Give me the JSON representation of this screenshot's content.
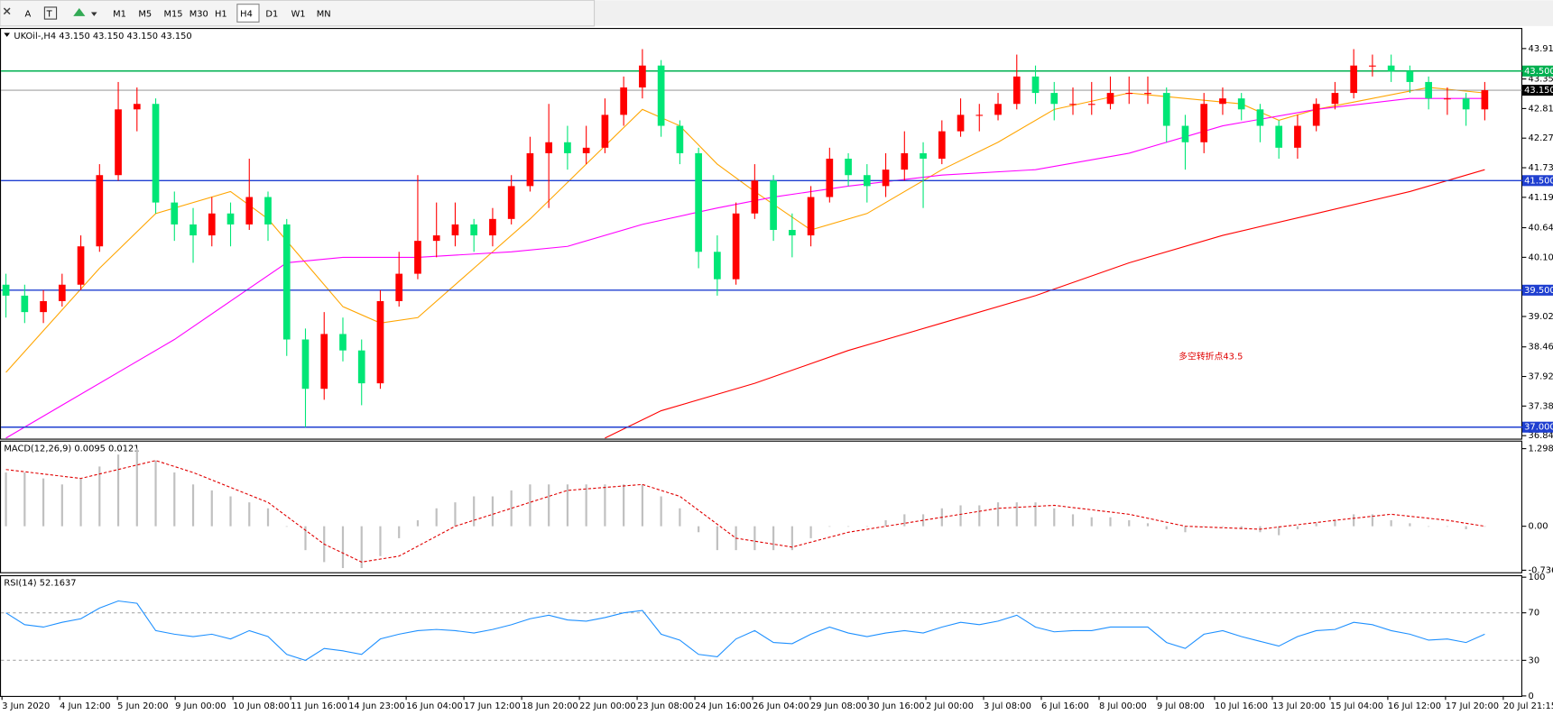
{
  "toolbar": {
    "text_tool": "A",
    "timeframes": [
      "M1",
      "M5",
      "M15",
      "M30",
      "H1",
      "H4",
      "D1",
      "W1",
      "MN"
    ],
    "selected": "H4"
  },
  "chart_data": [
    {
      "type": "candlestick",
      "title": "UKOil-,H4  43.150 43.150 43.150 43.150",
      "annotation": "多空转折点43.5",
      "up_color": "#ff0000",
      "down_color": "#00e676",
      "open": [
        39.6,
        39.4,
        39.1,
        39.3,
        39.6,
        40.3,
        41.6,
        42.8,
        42.9,
        41.1,
        40.7,
        40.5,
        40.9,
        40.7,
        41.2,
        40.7,
        38.6,
        37.7,
        38.7,
        38.4,
        37.8,
        39.3,
        39.8,
        40.4,
        40.5,
        40.7,
        40.5,
        40.8,
        41.4,
        42.0,
        42.2,
        42.0,
        42.1,
        42.7,
        43.2,
        43.6,
        42.5,
        42.0,
        40.2,
        39.7,
        40.9,
        41.5,
        40.6,
        40.5,
        41.2,
        41.9,
        41.6,
        41.4,
        41.7,
        42.0,
        41.9,
        42.4,
        42.7,
        42.7,
        42.9,
        43.4,
        43.1,
        42.9,
        42.9,
        42.9,
        43.1,
        43.1,
        43.1,
        42.5,
        42.2,
        42.9,
        43.0,
        42.8,
        42.5,
        42.1,
        42.5,
        42.9,
        43.1,
        43.6,
        43.6,
        43.5,
        43.3,
        43.0,
        43.0,
        42.8
      ],
      "high": [
        39.8,
        39.6,
        39.5,
        39.8,
        40.5,
        41.8,
        43.3,
        43.2,
        43.0,
        41.3,
        41.0,
        41.2,
        41.1,
        41.9,
        41.3,
        40.8,
        38.8,
        39.1,
        39.0,
        38.6,
        39.5,
        40.2,
        41.6,
        41.1,
        41.1,
        40.8,
        41.0,
        41.6,
        42.3,
        42.9,
        42.5,
        42.5,
        43.0,
        43.4,
        43.9,
        43.7,
        42.6,
        42.1,
        40.5,
        41.1,
        41.8,
        41.6,
        40.9,
        41.4,
        42.1,
        42.0,
        41.8,
        42.0,
        42.4,
        42.2,
        42.6,
        43.0,
        42.9,
        43.1,
        43.8,
        43.6,
        43.3,
        43.2,
        43.3,
        43.4,
        43.4,
        43.4,
        43.2,
        42.7,
        43.1,
        43.2,
        43.1,
        42.9,
        42.6,
        42.7,
        43.0,
        43.3,
        43.9,
        43.8,
        43.8,
        43.6,
        43.4,
        43.2,
        43.1,
        43.3
      ],
      "low": [
        39.0,
        38.9,
        38.9,
        39.2,
        39.5,
        40.2,
        41.5,
        42.4,
        40.9,
        40.4,
        40.0,
        40.3,
        40.3,
        40.6,
        40.4,
        38.3,
        37.0,
        37.5,
        38.2,
        37.4,
        37.7,
        39.2,
        39.7,
        40.1,
        40.3,
        40.2,
        40.3,
        40.7,
        41.3,
        41.0,
        41.7,
        41.8,
        42.0,
        42.5,
        43.0,
        42.3,
        41.8,
        39.9,
        39.4,
        39.6,
        40.8,
        40.4,
        40.1,
        40.3,
        41.1,
        41.4,
        41.1,
        41.2,
        41.5,
        41.0,
        41.8,
        42.3,
        42.4,
        42.6,
        42.8,
        42.9,
        42.6,
        42.7,
        42.7,
        42.8,
        42.9,
        42.9,
        42.2,
        41.7,
        42.0,
        42.7,
        42.6,
        42.2,
        41.9,
        41.9,
        42.4,
        42.8,
        43.0,
        43.4,
        43.3,
        43.1,
        42.8,
        42.7,
        42.5,
        42.6
      ],
      "close": [
        39.4,
        39.1,
        39.3,
        39.6,
        40.3,
        41.6,
        42.8,
        42.9,
        41.1,
        40.7,
        40.5,
        40.9,
        40.7,
        41.2,
        40.7,
        38.6,
        37.7,
        38.7,
        38.4,
        37.8,
        39.3,
        39.8,
        40.4,
        40.5,
        40.7,
        40.5,
        40.8,
        41.4,
        42.0,
        42.2,
        42.0,
        42.1,
        42.7,
        43.2,
        43.6,
        42.5,
        42.0,
        40.2,
        39.7,
        40.9,
        41.5,
        40.6,
        40.5,
        41.2,
        41.9,
        41.6,
        41.4,
        41.7,
        42.0,
        41.9,
        42.4,
        42.7,
        42.7,
        42.9,
        43.4,
        43.1,
        42.9,
        42.9,
        42.9,
        43.1,
        43.1,
        43.1,
        42.5,
        42.2,
        42.9,
        43.0,
        42.8,
        42.5,
        42.1,
        42.5,
        42.9,
        43.1,
        43.6,
        43.6,
        43.5,
        43.3,
        43.0,
        43.0,
        42.8,
        43.15
      ],
      "series": [
        {
          "color": "#ffa500",
          "x": [
            0,
            5,
            8,
            12,
            14,
            16,
            18,
            20,
            22,
            25,
            28,
            31,
            34,
            36,
            38,
            40,
            43,
            46,
            50,
            53,
            56,
            60,
            63,
            66,
            68,
            70,
            73,
            76,
            79
          ],
          "values": [
            38.0,
            39.9,
            40.9,
            41.3,
            40.8,
            40.0,
            39.2,
            38.9,
            39.0,
            39.9,
            40.8,
            41.8,
            42.8,
            42.5,
            41.8,
            41.3,
            40.6,
            40.9,
            41.7,
            42.2,
            42.8,
            43.1,
            43.0,
            42.9,
            42.6,
            42.8,
            43.0,
            43.2,
            43.1
          ]
        },
        {
          "color": "#ff00ff",
          "x": [
            0,
            3,
            6,
            9,
            12,
            15,
            18,
            22,
            27,
            30,
            34,
            38,
            41,
            45,
            50,
            55,
            60,
            65,
            70,
            75,
            79
          ],
          "values": [
            36.8,
            37.4,
            38.0,
            38.6,
            39.3,
            40.0,
            40.1,
            40.1,
            40.2,
            40.3,
            40.7,
            41.0,
            41.2,
            41.4,
            41.6,
            41.7,
            42.0,
            42.5,
            42.8,
            43.0,
            43.0
          ]
        },
        {
          "color": "#ff0000",
          "x": [
            32,
            35,
            40,
            45,
            50,
            55,
            60,
            65,
            70,
            75,
            79
          ],
          "values": [
            36.8,
            37.3,
            37.8,
            38.4,
            38.9,
            39.4,
            40.0,
            40.5,
            40.9,
            41.3,
            41.7
          ]
        }
      ],
      "levels": [
        {
          "value": 43.5,
          "label": "43.500",
          "color": "#00b050"
        },
        {
          "value": 43.15,
          "label": "43.150",
          "color": "#000000"
        },
        {
          "value": 41.5,
          "label": "41.500",
          "color": "#1f3fd0"
        },
        {
          "value": 39.5,
          "label": "39.500",
          "color": "#1f3fd0"
        },
        {
          "value": 37.0,
          "label": "37.000",
          "color": "#1f3fd0"
        }
      ],
      "ylim": [
        36.79,
        44.25
      ],
      "yticks": [
        {
          "value": 43.91,
          "label": "43.910"
        },
        43.355,
        42.815,
        42.275,
        41.735,
        41.195,
        {
          "value": 40.64,
          "label": "40.640"
        },
        {
          "value": 40.1,
          "label": "40.100"
        },
        {
          "value": 39.02,
          "label": "39.020"
        },
        38.465,
        37.925,
        37.385,
        36.845
      ],
      "x_labels": [
        "3 Jun 2020",
        "4 Jun 12:00",
        "5 Jun 20:00",
        "9 Jun 00:00",
        "10 Jun 08:00",
        "11 Jun 16:00",
        "14 Jun 23:00",
        "16 Jun 04:00",
        "17 Jun 12:00",
        "18 Jun 20:00",
        "22 Jun 00:00",
        "23 Jun 08:00",
        "24 Jun 16:00",
        "26 Jun 04:00",
        "29 Jun 08:00",
        "30 Jun 16:00",
        "2 Jul 00:00",
        "3 Jul 08:00",
        "6 Jul 16:00",
        "8 Jul 00:00",
        "9 Jul 08:00",
        "10 Jul 16:00",
        "13 Jul 20:00",
        "15 Jul 04:00",
        "16 Jul 12:00",
        "17 Jul 20:00",
        "20 Jul 21:15"
      ]
    },
    {
      "type": "macd",
      "title": "MACD(12,26,9) 0.0095 0.0121",
      "bar_color": "#c0c0c0",
      "signal_color": "#e00000",
      "values": [
        0.9,
        0.9,
        0.8,
        0.7,
        0.8,
        1.0,
        1.2,
        1.3,
        1.1,
        0.9,
        0.7,
        0.6,
        0.5,
        0.4,
        0.3,
        0.0,
        -0.4,
        -0.6,
        -0.7,
        -0.7,
        -0.5,
        -0.2,
        0.1,
        0.3,
        0.4,
        0.5,
        0.5,
        0.6,
        0.7,
        0.7,
        0.7,
        0.7,
        0.7,
        0.7,
        0.7,
        0.5,
        0.3,
        -0.1,
        -0.4,
        -0.4,
        -0.4,
        -0.4,
        -0.4,
        -0.2,
        0.0,
        0.0,
        0.0,
        0.1,
        0.2,
        0.2,
        0.3,
        0.35,
        0.35,
        0.4,
        0.4,
        0.4,
        0.3,
        0.2,
        0.15,
        0.15,
        0.1,
        0.05,
        -0.05,
        -0.1,
        0.0,
        0.0,
        -0.05,
        -0.1,
        -0.15,
        -0.05,
        0.05,
        0.1,
        0.2,
        0.2,
        0.1,
        0.05,
        0.0,
        0.0,
        -0.05,
        0.0
      ],
      "signal": {
        "x": [
          0,
          4,
          8,
          10,
          14,
          17,
          19,
          21,
          24,
          27,
          30,
          34,
          36,
          39,
          42,
          45,
          49,
          53,
          56,
          60,
          63,
          67,
          71,
          74,
          77,
          79
        ],
        "values": [
          0.95,
          0.8,
          1.1,
          0.9,
          0.4,
          -0.3,
          -0.6,
          -0.5,
          0.0,
          0.3,
          0.6,
          0.7,
          0.5,
          -0.2,
          -0.35,
          -0.1,
          0.1,
          0.3,
          0.35,
          0.2,
          0.0,
          -0.05,
          0.1,
          0.2,
          0.1,
          0.0
        ]
      },
      "ylim": [
        -0.77,
        1.4
      ],
      "yticks": [
        1.2985,
        {
          "value": 0,
          "label": "0.00"
        },
        -0.7362
      ]
    },
    {
      "type": "line",
      "title": "RSI(14) 52.1637",
      "color": "#1e90ff",
      "values": [
        70,
        60,
        58,
        62,
        65,
        74,
        80,
        78,
        55,
        52,
        50,
        52,
        48,
        55,
        50,
        35,
        30,
        40,
        38,
        35,
        48,
        52,
        55,
        56,
        55,
        53,
        56,
        60,
        65,
        68,
        64,
        63,
        66,
        70,
        72,
        52,
        47,
        35,
        33,
        48,
        55,
        45,
        44,
        52,
        58,
        53,
        50,
        53,
        55,
        53,
        58,
        62,
        60,
        63,
        68,
        58,
        54,
        55,
        55,
        58,
        58,
        58,
        45,
        40,
        52,
        55,
        50,
        46,
        42,
        50,
        55,
        56,
        62,
        60,
        55,
        52,
        47,
        48,
        45,
        52
      ],
      "ylim": [
        0,
        100
      ],
      "yticks": [
        100,
        70,
        30,
        0
      ],
      "dashed": [
        70,
        30
      ]
    }
  ]
}
